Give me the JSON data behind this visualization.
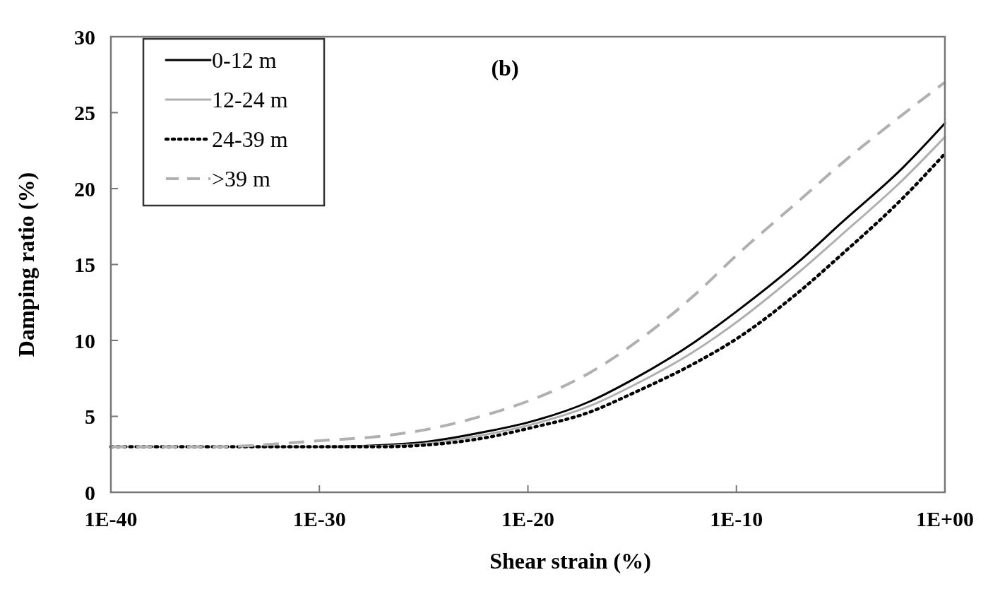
{
  "chart_data": {
    "type": "line",
    "xlabel": "Shear strain (%)",
    "ylabel": "Damping ratio (%)",
    "annotations": [
      "(b)"
    ],
    "x": [
      1e-40,
      1e-35,
      1e-30,
      1e-27,
      1e-25,
      1e-22,
      1e-20,
      1e-17,
      1e-15,
      1e-12,
      1e-10,
      1e-07,
      1e-05,
      0.01,
      1
    ],
    "series": [
      {
        "name": "0-12 m",
        "color": "#000000",
        "line_style": "solid",
        "values": [
          3,
          3,
          3,
          3.1,
          3.3,
          4.0,
          4.6,
          6.0,
          7.4,
          9.9,
          11.9,
          15.2,
          17.7,
          21.4,
          24.3
        ]
      },
      {
        "name": "12-24 m",
        "color": "#b0b0b0",
        "line_style": "solid",
        "values": [
          3,
          3,
          3,
          3.05,
          3.2,
          3.8,
          4.4,
          5.7,
          7.0,
          9.3,
          11.2,
          14.5,
          16.9,
          20.6,
          23.4
        ]
      },
      {
        "name": "24-39 m",
        "color": "#000000",
        "line_style": "dotted",
        "values": [
          3,
          3,
          3,
          3.0,
          3.1,
          3.6,
          4.2,
          5.3,
          6.5,
          8.5,
          10.1,
          13.2,
          15.6,
          19.4,
          22.3
        ]
      },
      {
        "name": ">39 m",
        "color": "#b0b0b0",
        "line_style": "dashed",
        "values": [
          3,
          3,
          3.4,
          3.7,
          4.1,
          5.1,
          6.0,
          7.9,
          9.7,
          13.0,
          15.6,
          19.2,
          21.6,
          24.9,
          27.0
        ]
      }
    ],
    "log": "x",
    "xlim": [
      1e-40,
      1
    ],
    "ylim": [
      0,
      30
    ],
    "xticks": [
      {
        "value": 1e-40,
        "label": "1E-40"
      },
      {
        "value": 1e-30,
        "label": "1E-30"
      },
      {
        "value": 1e-20,
        "label": "1E-20"
      },
      {
        "value": 1e-10,
        "label": "1E-10"
      },
      {
        "value": 1,
        "label": "1E+00"
      }
    ],
    "yticks": [
      0,
      5,
      10,
      15,
      20,
      25,
      30
    ],
    "grid": false,
    "legend": "top left",
    "marker": "none"
  }
}
